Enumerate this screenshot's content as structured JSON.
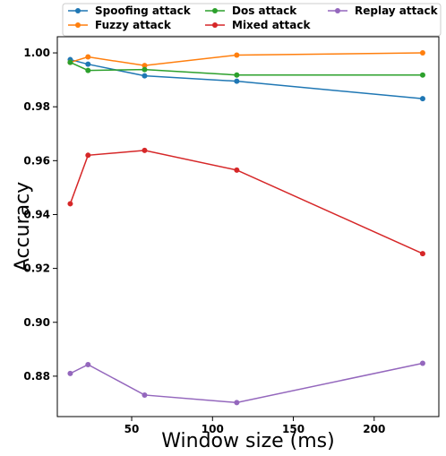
{
  "chart_data": {
    "type": "line",
    "title": "",
    "xlabel": "Window size (ms)",
    "ylabel": "Accuracy",
    "xlim": [
      4,
      240
    ],
    "ylim": [
      0.865,
      1.006
    ],
    "xticks": [
      50,
      100,
      150,
      200
    ],
    "yticks": [
      0.88,
      0.9,
      0.92,
      0.94,
      0.96,
      0.98,
      1.0
    ],
    "xtick_labels": [
      "50",
      "100",
      "150",
      "200"
    ],
    "ytick_labels": [
      "0.88",
      "0.90",
      "0.92",
      "0.94",
      "0.96",
      "0.98",
      "1.00"
    ],
    "grid": false,
    "legend_position": "top",
    "x": [
      12,
      23,
      58,
      115,
      230
    ],
    "series": [
      {
        "name": "Spoofing attack",
        "color": "#1f77b4",
        "values": [
          0.9975,
          0.9958,
          0.9915,
          0.9895,
          0.983
        ]
      },
      {
        "name": "Fuzzy attack",
        "color": "#ff7f0e",
        "values": [
          0.9965,
          0.9985,
          0.9953,
          0.9992,
          1.0
        ]
      },
      {
        "name": "Dos attack",
        "color": "#2ca02c",
        "values": [
          0.9965,
          0.9935,
          0.9938,
          0.9918,
          0.9918
        ]
      },
      {
        "name": "Mixed attack",
        "color": "#d62728",
        "values": [
          0.944,
          0.962,
          0.9638,
          0.9565,
          0.9255
        ]
      },
      {
        "name": "Replay attack",
        "color": "#9467bd",
        "values": [
          0.881,
          0.8843,
          0.873,
          0.8702,
          0.8848
        ]
      }
    ]
  }
}
